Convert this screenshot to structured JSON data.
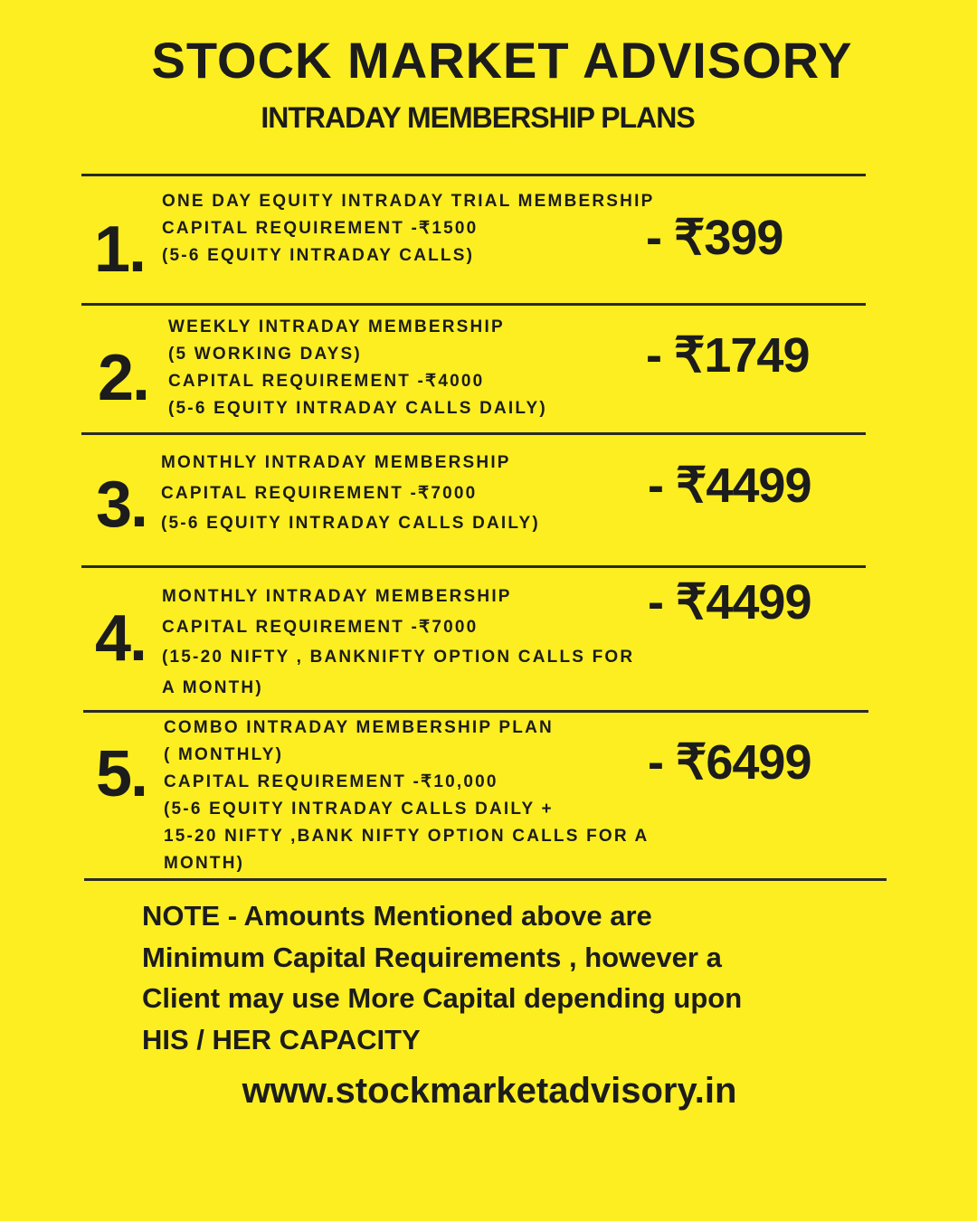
{
  "header": {
    "title": "STOCK MARKET ADVISORY",
    "subtitle": "INTRADAY MEMBERSHIP PLANS"
  },
  "plans": [
    {
      "number": "1.",
      "lines": [
        "ONE DAY EQUITY INTRADAY TRIAL MEMBERSHIP",
        "CAPITAL REQUIREMENT -₹1500",
        "(5-6 EQUITY INTRADAY CALLS)"
      ],
      "price": "- ₹399"
    },
    {
      "number": "2.",
      "lines": [
        "WEEKLY INTRADAY MEMBERSHIP",
        "(5 WORKING DAYS)",
        "CAPITAL REQUIREMENT -₹4000",
        "(5-6 EQUITY INTRADAY CALLS DAILY)"
      ],
      "price": "- ₹1749"
    },
    {
      "number": "3.",
      "lines": [
        "MONTHLY INTRADAY MEMBERSHIP",
        "CAPITAL REQUIREMENT -₹7000",
        "(5-6 EQUITY INTRADAY CALLS DAILY)"
      ],
      "price": "- ₹4499"
    },
    {
      "number": "4.",
      "lines": [
        "MONTHLY INTRADAY MEMBERSHIP",
        "CAPITAL REQUIREMENT -₹7000",
        "(15-20 NIFTY , BANKNIFTY OPTION CALLS FOR",
        "A MONTH)"
      ],
      "price": "- ₹4499"
    },
    {
      "number": "5.",
      "lines": [
        "COMBO INTRADAY MEMBERSHIP PLAN",
        "( MONTHLY)",
        "CAPITAL REQUIREMENT -₹10,000",
        "(5-6 EQUITY INTRADAY CALLS DAILY +",
        "15-20 NIFTY ,BANK NIFTY OPTION CALLS FOR A",
        "MONTH)"
      ],
      "price": "- ₹6499"
    }
  ],
  "note": {
    "lines": [
      "NOTE - Amounts Mentioned above are",
      "Minimum Capital Requirements , however a",
      "Client may use More Capital depending upon",
      "HIS / HER CAPACITY"
    ]
  },
  "website": "www.stockmarketadvisory.in",
  "colors": {
    "background": "#fcee21",
    "text": "#1c1c1c"
  }
}
